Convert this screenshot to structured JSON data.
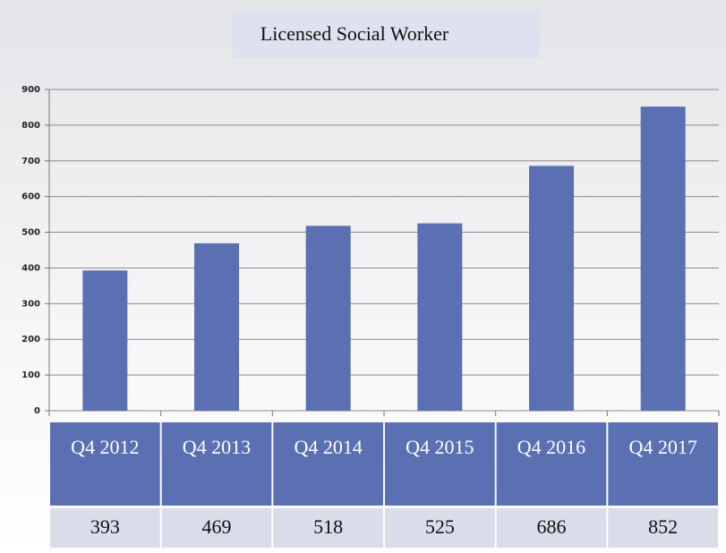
{
  "chart_data": {
    "type": "bar",
    "title": "Licensed Social Worker",
    "categories": [
      "Q4 2012",
      "Q4 2013",
      "Q4 2014",
      "Q4 2015",
      "Q4 2016",
      "Q4 2017"
    ],
    "values": [
      393,
      469,
      518,
      525,
      686,
      852
    ],
    "color": "#5b70b2",
    "ylim": [
      0,
      900
    ],
    "yticks": [
      0,
      100,
      200,
      300,
      400,
      500,
      600,
      700,
      800,
      900
    ],
    "grid": true
  }
}
